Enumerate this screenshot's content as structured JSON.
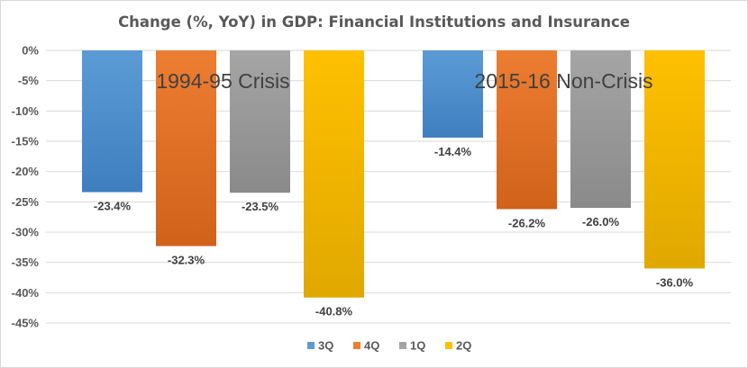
{
  "chart_data": {
    "type": "bar",
    "title": "Change (%, YoY) in GDP: Financial Institutions and Insurance",
    "xlabel": "",
    "ylabel": "",
    "ylim": [
      -45,
      0
    ],
    "y_ticks": [
      "0%",
      "-5%",
      "-10%",
      "-15%",
      "-20%",
      "-25%",
      "-30%",
      "-35%",
      "-40%",
      "-45%"
    ],
    "grid": true,
    "legend_position": "bottom",
    "groups": [
      {
        "annotation": "1994-95 Crisis",
        "bars": [
          {
            "series": "3Q",
            "value": -23.4,
            "label": "-23.4%"
          },
          {
            "series": "4Q",
            "value": -32.3,
            "label": "-32.3%"
          },
          {
            "series": "1Q",
            "value": -23.5,
            "label": "-23.5%"
          },
          {
            "series": "2Q",
            "value": -40.8,
            "label": "-40.8%"
          }
        ]
      },
      {
        "annotation": "2015-16 Non-Crisis",
        "bars": [
          {
            "series": "3Q",
            "value": -14.4,
            "label": "-14.4%"
          },
          {
            "series": "4Q",
            "value": -26.2,
            "label": "-26.2%"
          },
          {
            "series": "1Q",
            "value": -26.0,
            "label": "-26.0%"
          },
          {
            "series": "2Q",
            "value": -36.0,
            "label": "-36.0%"
          }
        ]
      }
    ],
    "series": [
      {
        "name": "3Q",
        "color": "#5b9bd5",
        "color_dark": "#3f7fc0"
      },
      {
        "name": "4Q",
        "color": "#ed7d31",
        "color_dark": "#d0621a"
      },
      {
        "name": "1Q",
        "color": "#a5a5a5",
        "color_dark": "#8a8a8a"
      },
      {
        "name": "2Q",
        "color": "#ffc000",
        "color_dark": "#e0a800"
      }
    ]
  }
}
